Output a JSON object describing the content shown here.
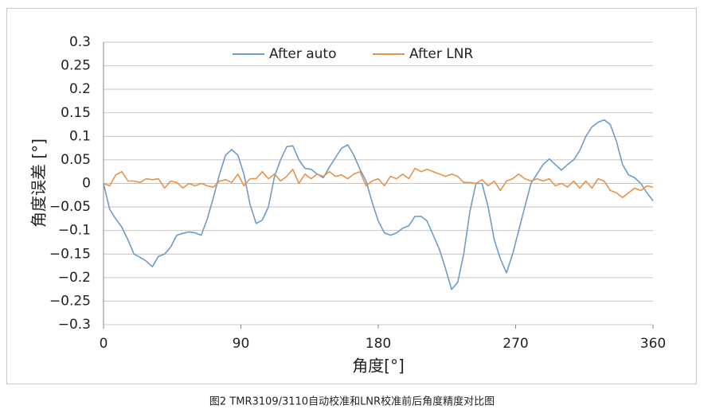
{
  "chart_data": {
    "type": "line",
    "xlabel": "角度[°]",
    "ylabel": "角度误差 [°]",
    "x": [
      0,
      4,
      8,
      12,
      16,
      20,
      24,
      28,
      32,
      36,
      40,
      44,
      48,
      52,
      56,
      60,
      64,
      68,
      72,
      76,
      80,
      84,
      88,
      92,
      96,
      100,
      104,
      108,
      112,
      116,
      120,
      124,
      128,
      132,
      136,
      140,
      144,
      148,
      152,
      156,
      160,
      164,
      168,
      172,
      176,
      180,
      184,
      188,
      192,
      196,
      200,
      204,
      208,
      212,
      216,
      220,
      224,
      228,
      232,
      236,
      240,
      244,
      248,
      252,
      256,
      260,
      264,
      268,
      272,
      276,
      280,
      284,
      288,
      292,
      296,
      300,
      304,
      308,
      312,
      316,
      320,
      324,
      328,
      332,
      336,
      340,
      344,
      348,
      352,
      356,
      360
    ],
    "series": [
      {
        "name": "After  auto",
        "color": "#6f9bc8",
        "values": [
          0,
          -0.055,
          -0.075,
          -0.093,
          -0.12,
          -0.15,
          -0.157,
          -0.165,
          -0.177,
          -0.155,
          -0.15,
          -0.135,
          -0.11,
          -0.106,
          -0.103,
          -0.105,
          -0.11,
          -0.075,
          -0.03,
          0.02,
          0.06,
          0.072,
          0.06,
          0.02,
          -0.045,
          -0.085,
          -0.078,
          -0.05,
          0.015,
          0.05,
          0.078,
          0.08,
          0.05,
          0.032,
          0.03,
          0.02,
          0.012,
          0.035,
          0.055,
          0.075,
          0.082,
          0.06,
          0.03,
          0.005,
          -0.04,
          -0.08,
          -0.105,
          -0.11,
          -0.105,
          -0.095,
          -0.09,
          -0.07,
          -0.07,
          -0.08,
          -0.11,
          -0.14,
          -0.18,
          -0.225,
          -0.21,
          -0.15,
          -0.06,
          0,
          0,
          -0.05,
          -0.12,
          -0.16,
          -0.19,
          -0.15,
          -0.1,
          -0.05,
          0,
          0.02,
          0.04,
          0.052,
          0.04,
          0.028,
          0.04,
          0.05,
          0.07,
          0.1,
          0.12,
          0.13,
          0.135,
          0.125,
          0.09,
          0.04,
          0.018,
          0.012,
          0,
          -0.02,
          -0.037
        ]
      },
      {
        "name": "After LNR",
        "color": "#e8924a",
        "values": [
          0,
          -0.005,
          0.018,
          0.025,
          0.005,
          0.005,
          0.002,
          0.01,
          0.008,
          0.01,
          -0.01,
          0.005,
          0.002,
          -0.01,
          0,
          -0.005,
          0,
          -0.005,
          -0.008,
          0.005,
          0.008,
          0.002,
          0.02,
          -0.005,
          0.01,
          0.01,
          0.025,
          0.01,
          0.02,
          0.005,
          0.015,
          0.03,
          0,
          0.02,
          0.01,
          0.02,
          0.015,
          0.025,
          0.015,
          0.018,
          0.01,
          0.02,
          0.025,
          -0.005,
          0.005,
          0.01,
          -0.005,
          0.015,
          0.01,
          0.02,
          0.01,
          0.032,
          0.025,
          0.03,
          0.025,
          0.02,
          0.015,
          0.02,
          0.015,
          0.002,
          0.002,
          0,
          0.008,
          -0.005,
          0.005,
          -0.015,
          0.005,
          0.01,
          0.02,
          0.01,
          0.005,
          0.01,
          0.005,
          0.01,
          -0.005,
          0,
          -0.008,
          0.005,
          -0.01,
          0.005,
          -0.01,
          0.01,
          0.005,
          -0.015,
          -0.02,
          -0.03,
          -0.02,
          -0.01,
          -0.015,
          -0.005,
          -0.008
        ]
      }
    ],
    "xlim": [
      0,
      360
    ],
    "xticks": [
      0,
      90,
      180,
      270,
      360
    ],
    "ylim": [
      -0.3,
      0.3
    ],
    "yticks": [
      {
        "value": -0.3,
        "label": "−0.3"
      },
      {
        "value": -0.25,
        "label": "−0.25"
      },
      {
        "value": -0.2,
        "label": "−0.2"
      },
      {
        "value": -0.15,
        "label": "−0.15"
      },
      {
        "value": -0.1,
        "label": "−0.1"
      },
      {
        "value": -0.05,
        "label": "−0.05"
      },
      0,
      0.05,
      0.1,
      0.15,
      0.2,
      0.25,
      0.3
    ],
    "grid": true,
    "legend": "top"
  },
  "caption": "图2 TMR3109/3110自动校准和LNR校准前后角度精度对比图"
}
